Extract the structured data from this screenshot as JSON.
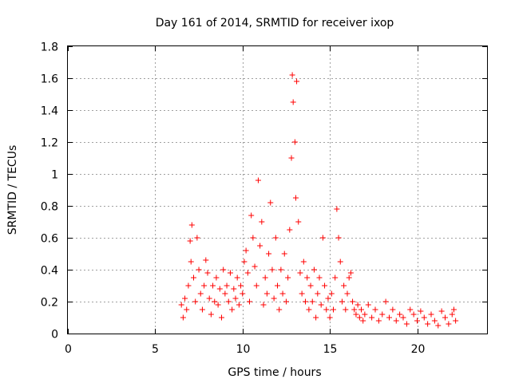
{
  "chart_data": {
    "type": "scatter",
    "title": "Day 161 of 2014, SRMTID for receiver ixop",
    "xlabel": "GPS time / hours",
    "ylabel": "SRMTID / TECUs",
    "xlim": [
      0,
      24
    ],
    "ylim": [
      0,
      1.8
    ],
    "xticks": [
      0,
      5,
      10,
      15,
      20
    ],
    "yticks": [
      0,
      0.2,
      0.4,
      0.6,
      0.8,
      1,
      1.2,
      1.4,
      1.6,
      1.8
    ],
    "grid": true,
    "marker": "+",
    "marker_color": "#ff0000",
    "series": [
      {
        "name": "SRMTID",
        "x": [
          6.5,
          6.6,
          6.7,
          6.8,
          6.9,
          7.0,
          7.05,
          7.1,
          7.2,
          7.3,
          7.4,
          7.5,
          7.6,
          7.7,
          7.8,
          7.9,
          8.0,
          8.1,
          8.2,
          8.3,
          8.4,
          8.5,
          8.6,
          8.7,
          8.8,
          8.9,
          9.0,
          9.1,
          9.2,
          9.3,
          9.4,
          9.5,
          9.6,
          9.7,
          9.8,
          9.9,
          10.0,
          10.1,
          10.2,
          10.3,
          10.4,
          10.5,
          10.6,
          10.7,
          10.8,
          10.9,
          11.0,
          11.1,
          11.2,
          11.3,
          11.4,
          11.5,
          11.6,
          11.7,
          11.8,
          11.9,
          12.0,
          12.1,
          12.2,
          12.3,
          12.4,
          12.5,
          12.6,
          12.7,
          12.8,
          12.85,
          12.9,
          13.0,
          13.05,
          13.1,
          13.2,
          13.3,
          13.4,
          13.5,
          13.6,
          13.7,
          13.8,
          13.9,
          14.0,
          14.1,
          14.2,
          14.3,
          14.4,
          14.5,
          14.6,
          14.7,
          14.8,
          14.9,
          15.0,
          15.1,
          15.2,
          15.3,
          15.4,
          15.5,
          15.6,
          15.7,
          15.8,
          15.9,
          16.0,
          16.1,
          16.2,
          16.3,
          16.4,
          16.5,
          16.6,
          16.7,
          16.8,
          16.9,
          17.0,
          17.2,
          17.4,
          17.6,
          17.8,
          18.0,
          18.2,
          18.4,
          18.6,
          18.8,
          19.0,
          19.2,
          19.4,
          19.6,
          19.8,
          20.0,
          20.2,
          20.4,
          20.6,
          20.8,
          21.0,
          21.2,
          21.4,
          21.6,
          21.8,
          22.0,
          22.1,
          22.2
        ],
        "y": [
          0.18,
          0.1,
          0.22,
          0.15,
          0.3,
          0.58,
          0.45,
          0.68,
          0.35,
          0.2,
          0.6,
          0.4,
          0.25,
          0.15,
          0.3,
          0.46,
          0.38,
          0.22,
          0.12,
          0.3,
          0.2,
          0.35,
          0.18,
          0.28,
          0.1,
          0.4,
          0.25,
          0.3,
          0.2,
          0.38,
          0.15,
          0.28,
          0.22,
          0.35,
          0.18,
          0.3,
          0.25,
          0.45,
          0.52,
          0.38,
          0.2,
          0.74,
          0.6,
          0.42,
          0.3,
          0.96,
          0.55,
          0.7,
          0.18,
          0.35,
          0.25,
          0.5,
          0.82,
          0.4,
          0.22,
          0.6,
          0.3,
          0.15,
          0.4,
          0.25,
          0.5,
          0.2,
          0.35,
          0.65,
          1.1,
          1.62,
          1.45,
          1.2,
          0.85,
          1.58,
          0.7,
          0.38,
          0.25,
          0.45,
          0.2,
          0.35,
          0.15,
          0.3,
          0.2,
          0.4,
          0.1,
          0.25,
          0.35,
          0.18,
          0.6,
          0.3,
          0.15,
          0.22,
          0.1,
          0.25,
          0.15,
          0.35,
          0.78,
          0.6,
          0.45,
          0.2,
          0.3,
          0.15,
          0.25,
          0.35,
          0.38,
          0.2,
          0.15,
          0.12,
          0.18,
          0.1,
          0.15,
          0.08,
          0.12,
          0.18,
          0.1,
          0.15,
          0.08,
          0.12,
          0.2,
          0.1,
          0.15,
          0.08,
          0.12,
          0.1,
          0.06,
          0.15,
          0.12,
          0.08,
          0.14,
          0.1,
          0.06,
          0.12,
          0.08,
          0.05,
          0.14,
          0.1,
          0.06,
          0.12,
          0.15,
          0.08
        ]
      }
    ]
  }
}
